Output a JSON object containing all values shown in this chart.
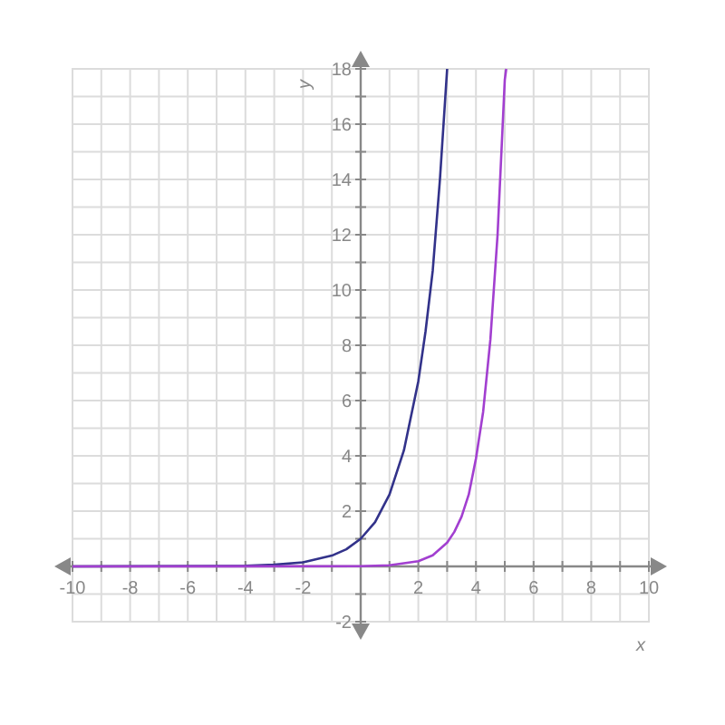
{
  "chart_data": {
    "type": "line",
    "xlabel": "x",
    "ylabel": "y",
    "xlim": [
      -10,
      10
    ],
    "ylim": [
      -2,
      18
    ],
    "xticks": [
      -10,
      {
        "value": -9,
        "label": null
      },
      -8,
      {
        "value": -7,
        "label": null
      },
      -6,
      {
        "value": -5,
        "label": null
      },
      -4,
      {
        "value": -3,
        "label": null
      },
      -2,
      {
        "value": -1,
        "label": null
      },
      {
        "value": 1,
        "label": null
      },
      2,
      {
        "value": 3,
        "label": null
      },
      4,
      {
        "value": 5,
        "label": null
      },
      6,
      {
        "value": 7,
        "label": null
      },
      8,
      {
        "value": 9,
        "label": null
      },
      10
    ],
    "yticks": [
      -2,
      {
        "value": -1,
        "label": null
      },
      {
        "value": 1,
        "label": null
      },
      2,
      {
        "value": 3,
        "label": null
      },
      4,
      {
        "value": 5,
        "label": null
      },
      6,
      {
        "value": 7,
        "label": null
      },
      8,
      {
        "value": 9,
        "label": null
      },
      10,
      {
        "value": 11,
        "label": null
      },
      12,
      {
        "value": 13,
        "label": null
      },
      14,
      {
        "value": 15,
        "label": null
      },
      16,
      {
        "value": 17,
        "label": null
      },
      18
    ],
    "grid": true,
    "marker": "none",
    "line_style": "solid",
    "series": [
      {
        "color": "#32328a",
        "x": [
          -10,
          -4,
          -3,
          -2,
          -1,
          -0.5,
          0,
          0.5,
          1,
          1.5,
          2,
          2.25,
          2.5,
          2.75,
          3
        ],
        "values": [
          0,
          0.02,
          0.06,
          0.15,
          0.39,
          0.62,
          1,
          1.6,
          2.6,
          4.2,
          6.7,
          8.5,
          10.7,
          14,
          18
        ]
      },
      {
        "color": "#a23fd0",
        "x": [
          -10,
          0,
          1,
          2,
          2.5,
          3,
          3.25,
          3.5,
          3.75,
          4,
          4.25,
          4.5,
          4.75,
          5,
          5.05
        ],
        "values": [
          0,
          0.01,
          0.04,
          0.19,
          0.4,
          0.86,
          1.25,
          1.8,
          2.6,
          3.9,
          5.6,
          8.2,
          12,
          17.6,
          18
        ]
      }
    ]
  }
}
